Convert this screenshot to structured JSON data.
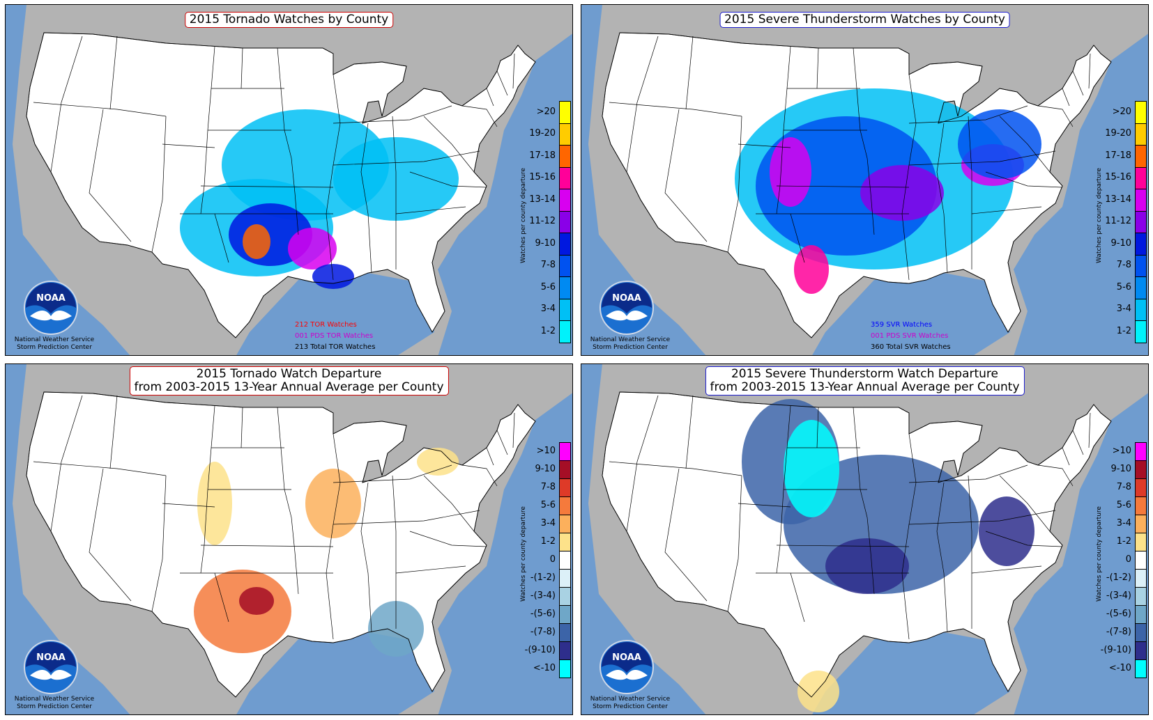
{
  "panels": [
    {
      "title": "2015 Tornado Watches by County",
      "title_line2": "",
      "kind": "count",
      "title_color": "#cc0000",
      "legend_labels": [
        "1-2",
        "3-4",
        "5-6",
        "7-8",
        "9-10",
        "11-12",
        "13-14",
        "15-16",
        "17-18",
        "19-20",
        ">20"
      ],
      "legend_colors": [
        "#00f2fb",
        "#00c0f5",
        "#008af2",
        "#0052f0",
        "#0018e0",
        "#8a00e8",
        "#d800f0",
        "#ff0099",
        "#ff6600",
        "#ffcc00",
        "#ffff00"
      ],
      "legend_axis_label": "Watches per county departure",
      "stats": [
        {
          "text": "212 TOR Watches",
          "color": "#ff0000"
        },
        {
          "text": "001 PDS TOR Watches",
          "color": "#cc00cc"
        },
        {
          "text": "213 Total TOR Watches",
          "color": "#000000"
        }
      ],
      "footer_line1": "National Weather Service",
      "footer_line2": "Storm Prediction Center",
      "logo_text": "NOAA"
    },
    {
      "title": "2015 Severe Thunderstorm Watches by County",
      "title_line2": "",
      "kind": "count",
      "title_color": "#1a1acc",
      "legend_labels": [
        "1-2",
        "3-4",
        "5-6",
        "7-8",
        "9-10",
        "11-12",
        "13-14",
        "15-16",
        "17-18",
        "19-20",
        ">20"
      ],
      "legend_colors": [
        "#00f2fb",
        "#00c0f5",
        "#008af2",
        "#0052f0",
        "#0018e0",
        "#8a00e8",
        "#d800f0",
        "#ff0099",
        "#ff6600",
        "#ffcc00",
        "#ffff00"
      ],
      "legend_axis_label": "Watches per county departure",
      "stats": [
        {
          "text": "359 SVR Watches",
          "color": "#0000ff"
        },
        {
          "text": "001 PDS SVR Watches",
          "color": "#cc00cc"
        },
        {
          "text": "360 Total SVR Watches",
          "color": "#000000"
        }
      ],
      "footer_line1": "National Weather Service",
      "footer_line2": "Storm Prediction Center",
      "logo_text": "NOAA"
    },
    {
      "title": "2015 Tornado Watch Departure",
      "title_line2": "from 2003-2015 13-Year Annual Average per County",
      "kind": "departure",
      "title_color": "#cc0000",
      "legend_labels": [
        "<-10",
        "-(9-10)",
        "-(7-8)",
        "-(5-6)",
        "-(3-4)",
        "-(1-2)",
        "0",
        "1-2",
        "3-4",
        "5-6",
        "7-8",
        "9-10",
        ">10"
      ],
      "legend_colors": [
        "#00ffff",
        "#2e2e8c",
        "#3c64a8",
        "#6fa7c8",
        "#a9d2e3",
        "#dcf0f8",
        "#ffffff",
        "#fde28a",
        "#fcb05c",
        "#f57a3c",
        "#de3a28",
        "#a50e26",
        "#ff00ff"
      ],
      "legend_axis_label": "Watches per county departure",
      "stats": [],
      "footer_line1": "National Weather Service",
      "footer_line2": "Storm Prediction Center",
      "logo_text": "NOAA"
    },
    {
      "title": "2015 Severe Thunderstorm Watch Departure",
      "title_line2": "from 2003-2015 13-Year Annual Average per County",
      "kind": "departure",
      "title_color": "#1a1acc",
      "legend_labels": [
        "<-10",
        "-(9-10)",
        "-(7-8)",
        "-(5-6)",
        "-(3-4)",
        "-(1-2)",
        "0",
        "1-2",
        "3-4",
        "5-6",
        "7-8",
        "9-10",
        ">10"
      ],
      "legend_colors": [
        "#00ffff",
        "#2e2e8c",
        "#3c64a8",
        "#6fa7c8",
        "#a9d2e3",
        "#dcf0f8",
        "#ffffff",
        "#fde28a",
        "#fcb05c",
        "#f57a3c",
        "#de3a28",
        "#a50e26",
        "#ff00ff"
      ],
      "legend_axis_label": "Watches per county departure",
      "stats": [],
      "footer_line1": "National Weather Service",
      "footer_line2": "Storm Prediction Center",
      "logo_text": "NOAA"
    }
  ],
  "map_colors": {
    "ocean": "#6f9ccf",
    "land_outside": "#b3b3b3",
    "us_land": "#ffffff"
  }
}
